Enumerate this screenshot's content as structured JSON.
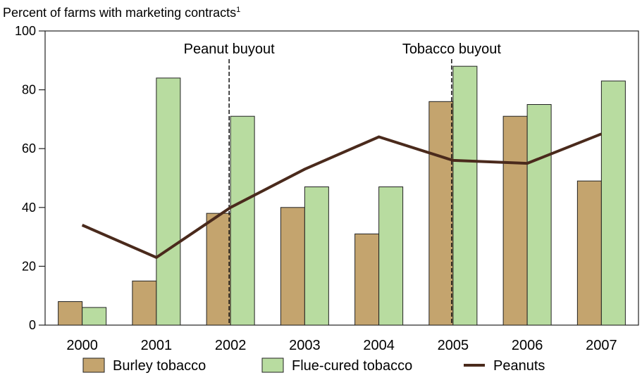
{
  "chart_data": {
    "type": "bar",
    "title": "Percent of farms with marketing contracts",
    "title_footnote": "1",
    "categories": [
      "2000",
      "2001",
      "2002",
      "2003",
      "2004",
      "2005",
      "2006",
      "2007"
    ],
    "series": [
      {
        "name": "Burley tobacco",
        "kind": "bar",
        "color": "#c4a46e",
        "values": [
          8,
          15,
          38,
          40,
          31,
          76,
          71,
          49
        ]
      },
      {
        "name": "Flue-cured tobacco",
        "kind": "bar",
        "color": "#b8dca0",
        "values": [
          6,
          84,
          71,
          47,
          47,
          88,
          75,
          83
        ]
      },
      {
        "name": "Peanuts",
        "kind": "line",
        "color": "#4a2a1c",
        "values": [
          34,
          23,
          40,
          53,
          64,
          56,
          55,
          65
        ]
      }
    ],
    "ylim": [
      0,
      100
    ],
    "yticks": [
      "0",
      "20",
      "40",
      "60",
      "80",
      "100"
    ],
    "annotations": [
      {
        "label": "Peanut buyout",
        "between": [
          "2001",
          "2002"
        ]
      },
      {
        "label": "Tobacco buyout",
        "between": [
          "2004",
          "2005"
        ]
      }
    ],
    "grid": false,
    "legend_position": "bottom"
  }
}
